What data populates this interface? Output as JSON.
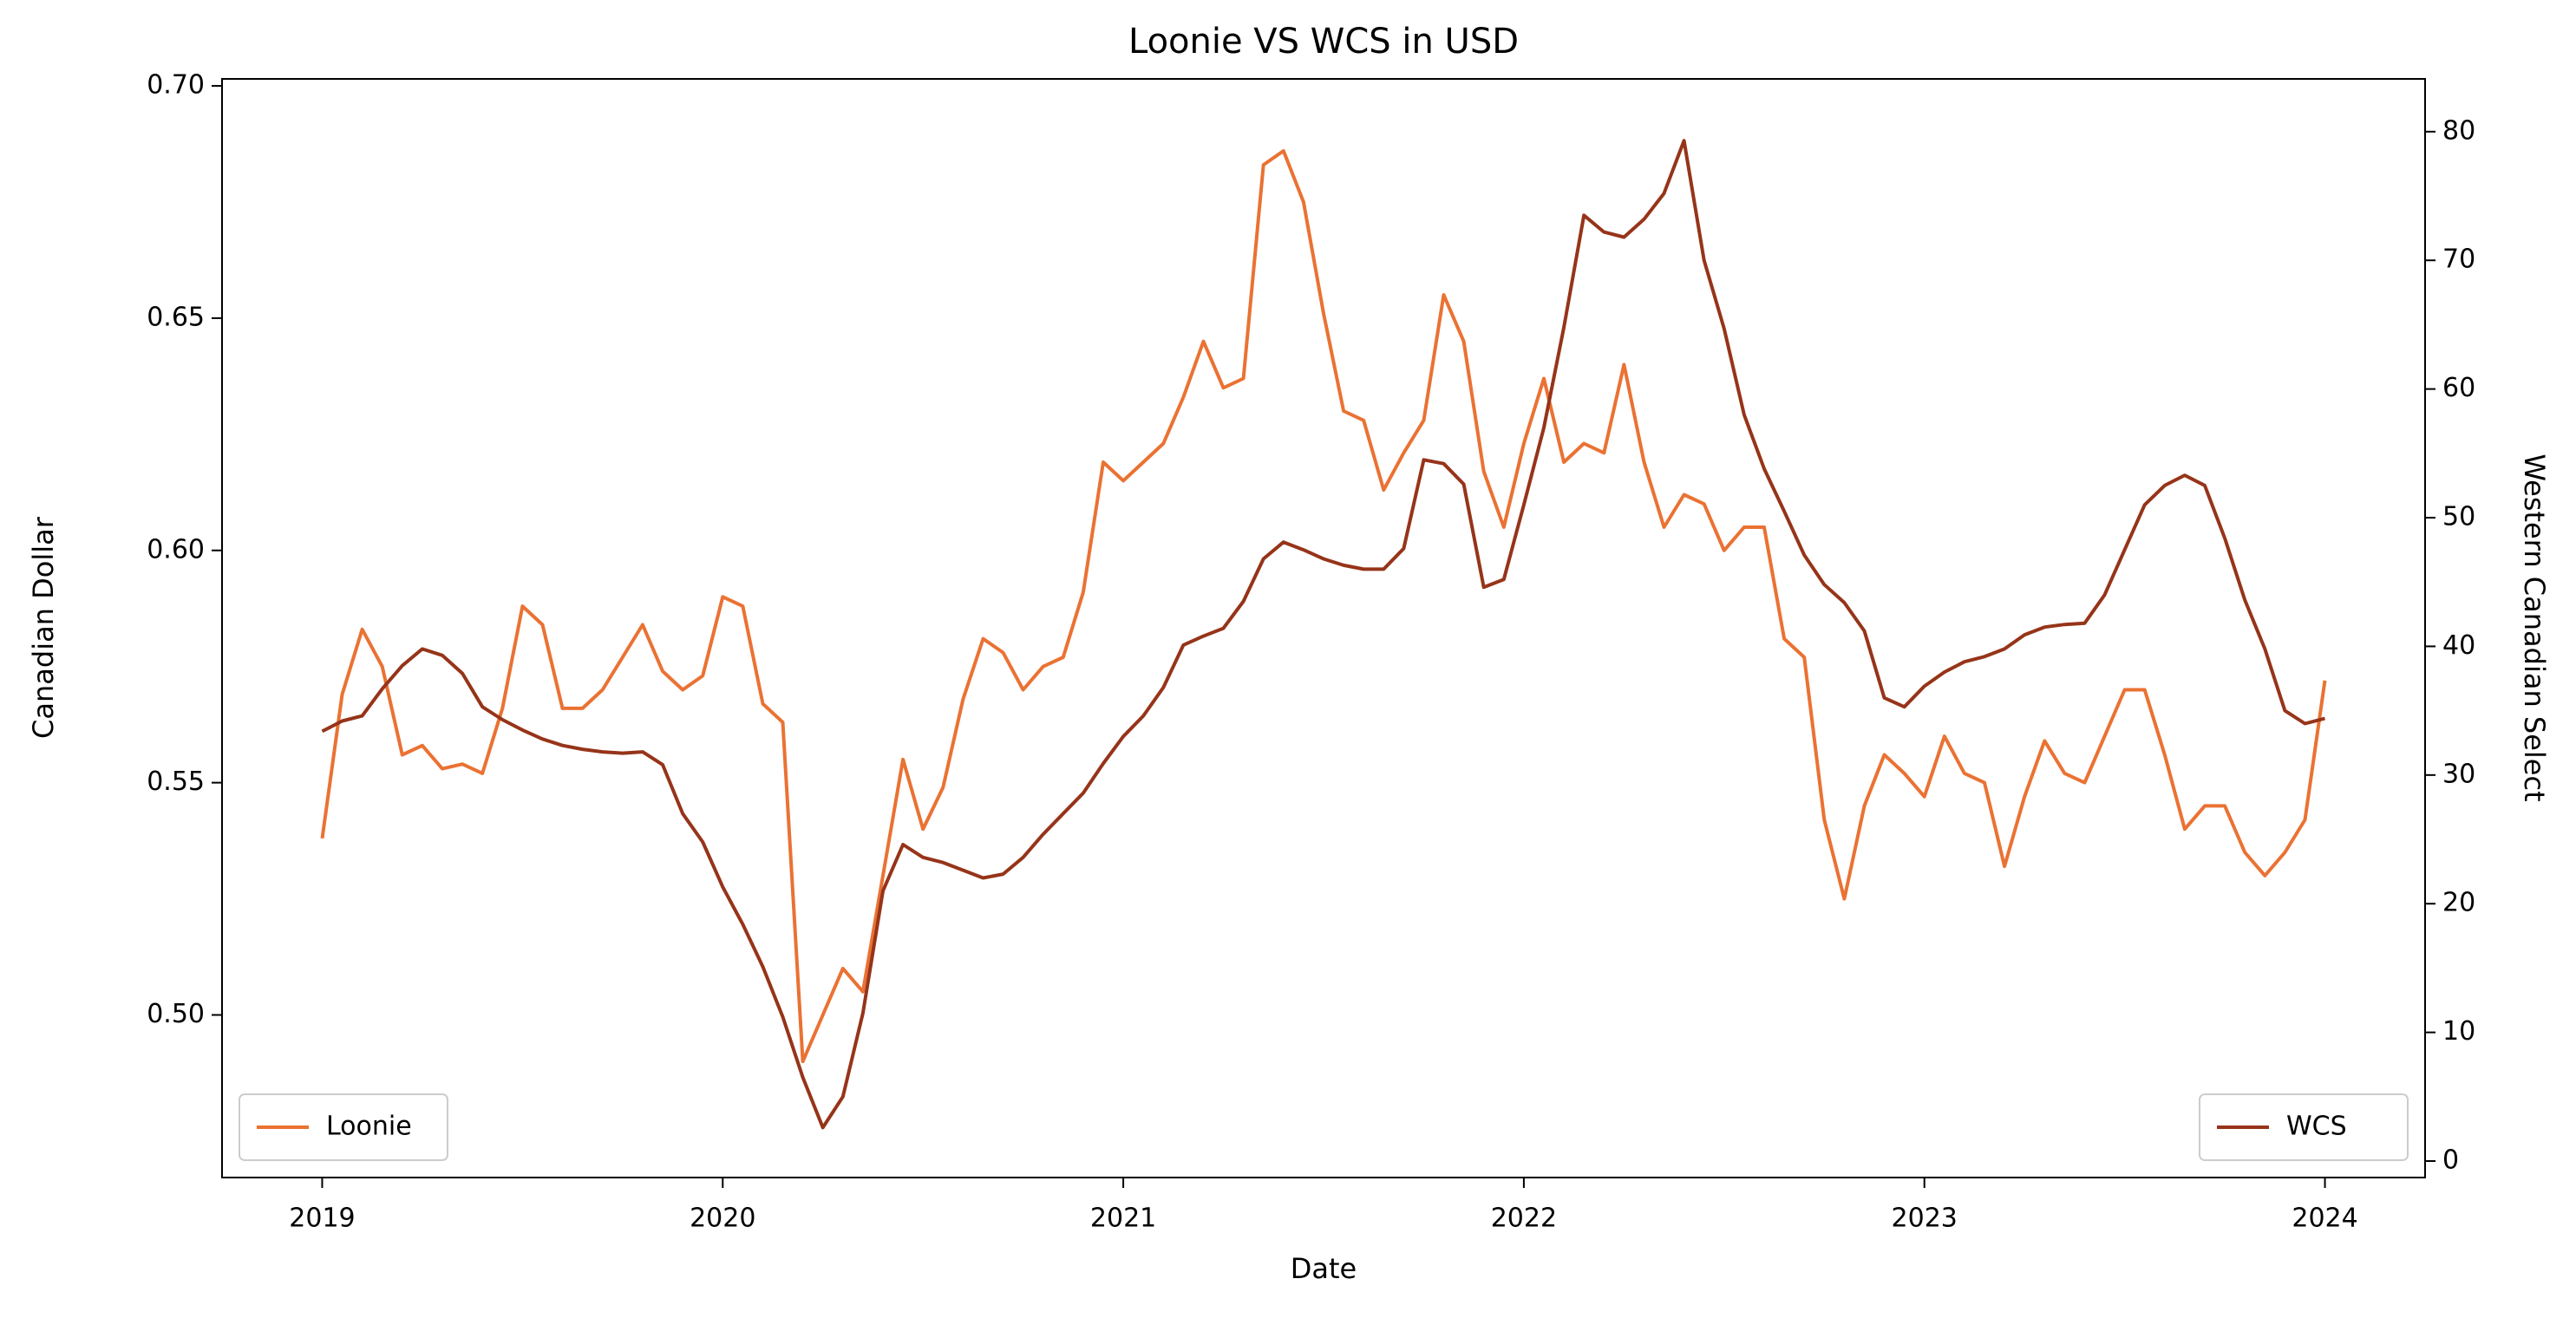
{
  "chart_data": {
    "type": "line",
    "title": "Loonie VS WCS in USD",
    "xlabel": "Date",
    "ylabel": "Canadian Dollar",
    "y2label": "Western Canadian Select",
    "x": [
      2019.0,
      2019.05,
      2019.1,
      2019.15,
      2019.2,
      2019.25,
      2019.3,
      2019.35,
      2019.4,
      2019.45,
      2019.5,
      2019.55,
      2019.6,
      2019.65,
      2019.7,
      2019.75,
      2019.8,
      2019.85,
      2019.9,
      2019.95,
      2020.0,
      2020.05,
      2020.1,
      2020.15,
      2020.2,
      2020.25,
      2020.3,
      2020.35,
      2020.4,
      2020.45,
      2020.5,
      2020.55,
      2020.6,
      2020.65,
      2020.7,
      2020.75,
      2020.8,
      2020.85,
      2020.9,
      2020.95,
      2021.0,
      2021.05,
      2021.1,
      2021.15,
      2021.2,
      2021.25,
      2021.3,
      2021.35,
      2021.4,
      2021.45,
      2021.5,
      2021.55,
      2021.6,
      2021.65,
      2021.7,
      2021.75,
      2021.8,
      2021.85,
      2021.9,
      2021.95,
      2022.0,
      2022.05,
      2022.1,
      2022.15,
      2022.2,
      2022.25,
      2022.3,
      2022.35,
      2022.4,
      2022.45,
      2022.5,
      2022.55,
      2022.6,
      2022.65,
      2022.7,
      2022.75,
      2022.8,
      2022.85,
      2022.9,
      2022.95,
      2023.0,
      2023.05,
      2023.1,
      2023.15,
      2023.2,
      2023.25,
      2023.3,
      2023.35,
      2023.4,
      2023.45,
      2023.5,
      2023.55,
      2023.6,
      2023.65,
      2023.7,
      2023.75,
      2023.8,
      2023.85,
      2023.9,
      2023.95,
      2024.0
    ],
    "xlim": [
      2018.75,
      2024.25
    ],
    "xticks": [
      2019,
      2020,
      2021,
      2022,
      2023,
      2024
    ],
    "ylim": [
      0.465,
      0.7015
    ],
    "yticks": [
      {
        "value": 0.5,
        "label": "0.50"
      },
      0.55,
      {
        "value": 0.6,
        "label": "0.60"
      },
      0.65,
      {
        "value": 0.7,
        "label": "0.70"
      }
    ],
    "y2lim": [
      -1.28,
      84.1
    ],
    "y2ticks": [
      0,
      10,
      20,
      30,
      40,
      50,
      60,
      70,
      80
    ],
    "series": [
      {
        "name": "Loonie",
        "color": "#ea7233",
        "legend": "lower left",
        "values": [
          0.538,
          0.569,
          0.583,
          0.575,
          0.556,
          0.558,
          0.553,
          0.554,
          0.552,
          0.566,
          0.588,
          0.584,
          0.566,
          0.566,
          0.57,
          0.577,
          0.584,
          0.574,
          0.57,
          0.573,
          0.59,
          0.588,
          0.567,
          0.563,
          0.49,
          0.5,
          0.51,
          0.505,
          0.53,
          0.555,
          0.54,
          0.549,
          0.568,
          0.581,
          0.578,
          0.57,
          0.575,
          0.577,
          0.591,
          0.619,
          0.615,
          0.619,
          0.623,
          0.633,
          0.645,
          0.635,
          0.637,
          0.683,
          0.686,
          0.675,
          0.651,
          0.63,
          0.628,
          0.613,
          0.621,
          0.628,
          0.655,
          0.645,
          0.617,
          0.605,
          0.623,
          0.637,
          0.619,
          0.623,
          0.621,
          0.64,
          0.619,
          0.605,
          0.612,
          0.61,
          0.6,
          0.605,
          0.605,
          0.581,
          0.577,
          0.542,
          0.525,
          0.545,
          0.556,
          0.552,
          0.547,
          0.56,
          0.552,
          0.55,
          0.532,
          0.547,
          0.559,
          0.552,
          0.55,
          0.56,
          0.57,
          0.57,
          0.556,
          0.54,
          0.545,
          0.545,
          0.535,
          0.53,
          0.535,
          0.542,
          0.572
        ]
      },
      {
        "name": "WCS",
        "color": "#963419",
        "axis": "y2",
        "legend": "lower right",
        "values": [
          33.4,
          34.2,
          34.6,
          36.7,
          38.5,
          39.8,
          39.3,
          37.9,
          35.3,
          34.3,
          33.5,
          32.8,
          32.3,
          32.0,
          31.8,
          31.7,
          31.8,
          30.8,
          27.0,
          24.8,
          21.3,
          18.4,
          15.1,
          11.2,
          6.5,
          2.6,
          5.0,
          11.5,
          21.0,
          24.6,
          23.6,
          23.2,
          22.6,
          22.0,
          22.3,
          23.6,
          25.4,
          27.0,
          28.6,
          30.9,
          33.0,
          34.6,
          36.8,
          40.1,
          40.8,
          41.4,
          43.5,
          46.8,
          48.1,
          47.5,
          46.8,
          46.3,
          46.0,
          46.0,
          47.6,
          54.5,
          54.2,
          52.6,
          44.6,
          45.2,
          51.0,
          57.0,
          64.8,
          73.5,
          72.2,
          71.8,
          73.2,
          75.2,
          79.3,
          70.0,
          64.7,
          58.0,
          53.8,
          50.5,
          47.1,
          44.8,
          43.4,
          41.2,
          36.0,
          35.3,
          36.9,
          38.0,
          38.8,
          39.2,
          39.8,
          40.9,
          41.5,
          41.7,
          41.8,
          44.0,
          47.5,
          51.0,
          52.5,
          53.3,
          52.5,
          48.4,
          43.6,
          39.8,
          35.0,
          34.0,
          34.4
        ]
      }
    ]
  }
}
